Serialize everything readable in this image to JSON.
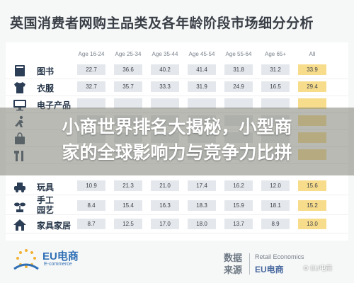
{
  "title": "英国消费者网购主品类及各年龄阶段市场细分分析",
  "chart_data": {
    "type": "table",
    "columns": [
      "Age 16-24",
      "Age 25-34",
      "Age 35-44",
      "Age 45-54",
      "Age 55-64",
      "Age 65+",
      "All"
    ],
    "rows": [
      {
        "label": "图书",
        "icon": "book-icon",
        "values": [
          "22.7",
          "36.6",
          "40.2",
          "41.4",
          "31.8",
          "31.2",
          "33.9"
        ]
      },
      {
        "label": "衣服",
        "icon": "shirt-icon",
        "values": [
          "32.7",
          "35.7",
          "33.3",
          "31.9",
          "24.9",
          "16.5",
          "29.4"
        ]
      },
      {
        "label": "电子产品",
        "icon": "monitor-icon",
        "values": [
          "",
          "",
          "",
          "",
          "",
          "",
          ""
        ]
      },
      {
        "label": "",
        "icon": "running-icon",
        "values": [
          "",
          "",
          "",
          "",
          "",
          "",
          ""
        ]
      },
      {
        "label": "",
        "icon": "bag-icon",
        "values": [
          "",
          "",
          "",
          "",
          "",
          "",
          ""
        ]
      },
      {
        "label": "",
        "icon": "tools-icon",
        "values": [
          "",
          "",
          "",
          "",
          "",
          "",
          ""
        ]
      },
      {
        "label": "玩具",
        "icon": "toy-icon",
        "values": [
          "10.9",
          "21.3",
          "21.0",
          "17.4",
          "16.2",
          "12.0",
          "15.6"
        ]
      },
      {
        "label": "手工\n园艺",
        "icon": "garden-icon",
        "values": [
          "8.4",
          "15.4",
          "16.3",
          "18.3",
          "15.9",
          "18.1",
          "15.2"
        ]
      },
      {
        "label": "家具家居",
        "icon": "house-icon",
        "values": [
          "8.7",
          "12.5",
          "17.0",
          "18.0",
          "13.7",
          "8.9",
          "13.0"
        ]
      }
    ]
  },
  "banner": {
    "line1": "小商世界排名大揭秘，小型商",
    "line2": "家的全球影响力与竞争力比拼"
  },
  "footer": {
    "logo_main": "EU电商",
    "logo_sub": "E-commerce",
    "data_source_line1": "数据",
    "data_source_line2": "来源",
    "retail_economics": "Retail Economics",
    "eu_logo_text": "EU电商",
    "watermark": "EU电商"
  },
  "colors": {
    "all_column": "#f7dc8c",
    "cell_bg": "#e4e8ec",
    "icon": "#2c3e55",
    "logo": "#2f6fb5"
  }
}
